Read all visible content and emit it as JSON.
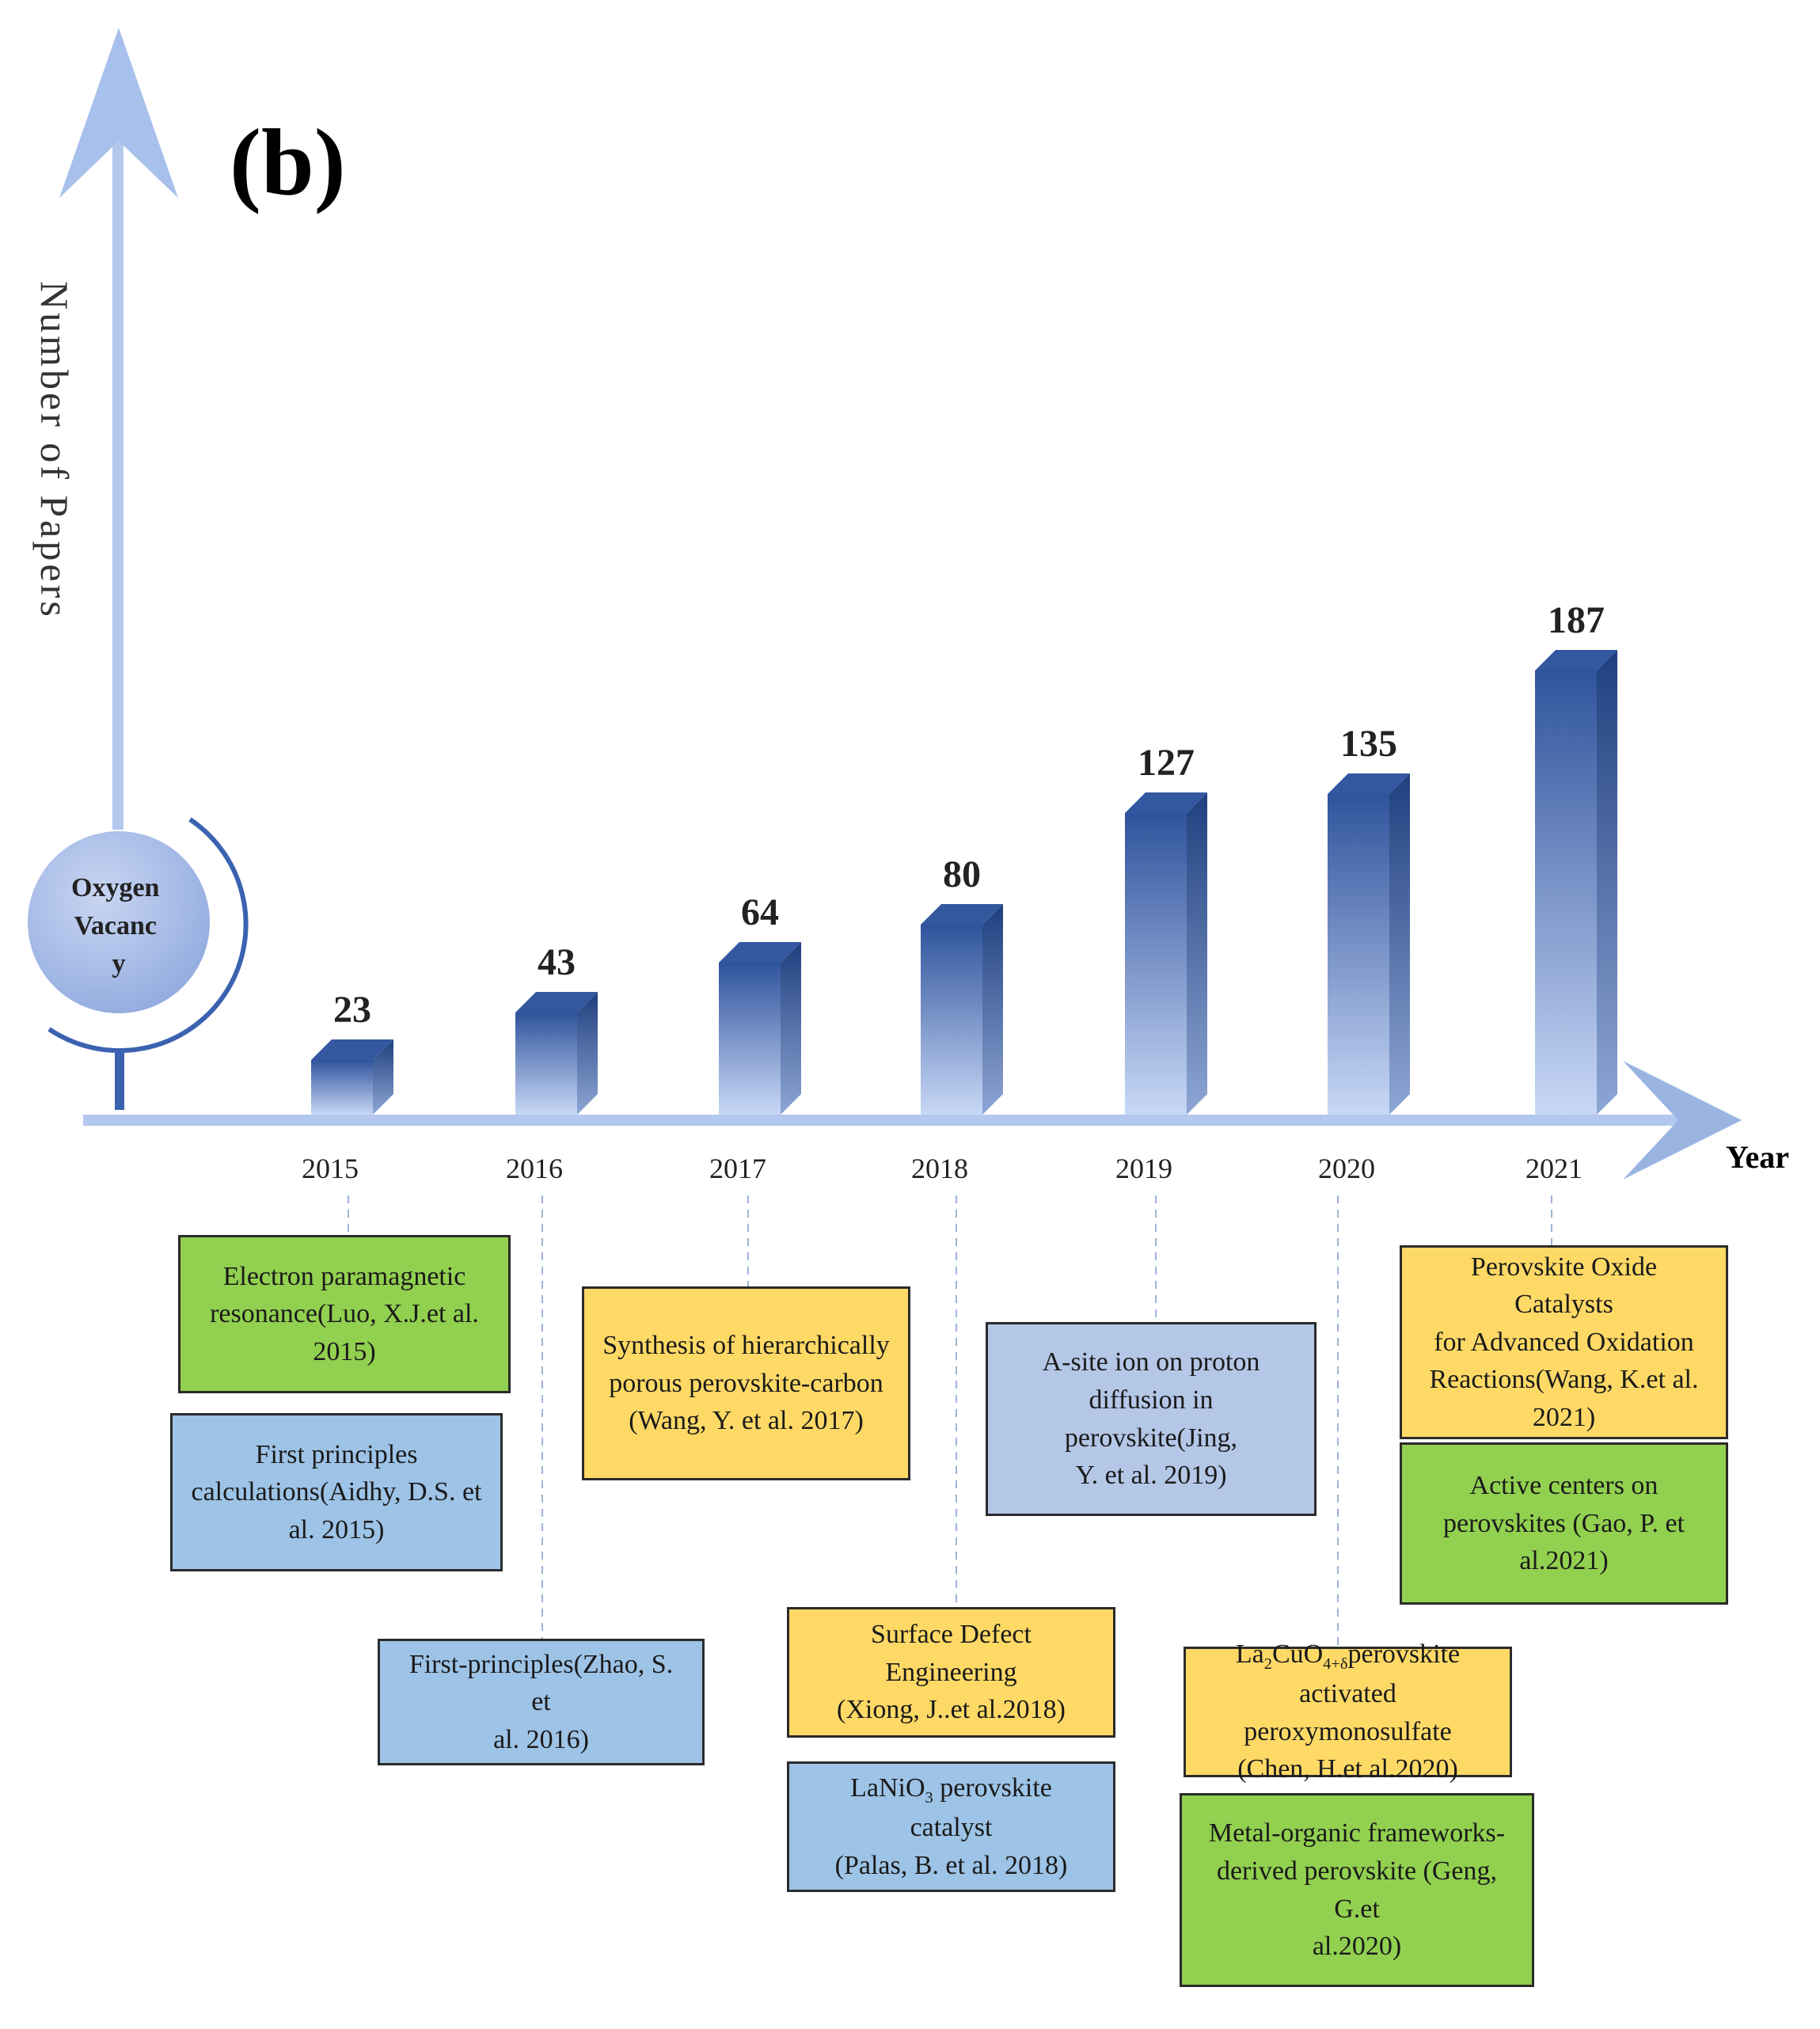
{
  "panel_label": "(b)",
  "y_axis_title": "Number of Papers",
  "x_axis_title": "Year",
  "center_node": "Oxygen\nVacanc\ny",
  "colors": {
    "axis_light": "#b4c8ee",
    "axis_mid": "#9ab4e2",
    "bar_top": "#2f539c",
    "bar_bottom": "#c8d8f6",
    "bar_side": "#2a4a88",
    "bar_cap": "#34589f",
    "green": "#92d050",
    "blue": "#9dc3e6",
    "yellow": "#ffd966",
    "lavender": "#b4c7e7"
  },
  "chart_data": {
    "type": "bar",
    "categories": [
      "2015",
      "2016",
      "2017",
      "2018",
      "2019",
      "2020",
      "2021"
    ],
    "values": [
      23,
      43,
      64,
      80,
      127,
      135,
      187
    ],
    "data_labels": [
      "23",
      "43",
      "64",
      "80",
      "127",
      "135",
      "187"
    ],
    "title": "",
    "xlabel": "Year",
    "ylabel": "Number of Papers",
    "style": "3d-gradient-columns",
    "grid": false
  },
  "annotations": [
    {
      "year": "2015",
      "color": "green",
      "text": "Electron paramagnetic\nresonance(Luo, X.J.et al.\n2015)"
    },
    {
      "year": "2015",
      "color": "blue",
      "text": "First principles\ncalculations(Aidhy, D.S. et\nal. 2015)"
    },
    {
      "year": "2016",
      "color": "blue",
      "text": "First-principles(Zhao, S. et\nal. 2016)"
    },
    {
      "year": "2017",
      "color": "yellow",
      "text": "Synthesis of hierarchically\nporous perovskite-carbon\n(Wang, Y. et al. 2017)"
    },
    {
      "year": "2018",
      "color": "yellow",
      "text": "Surface Defect Engineering\n(Xiong, J..et al.2018)"
    },
    {
      "year": "2018",
      "color": "blue",
      "text_parts": [
        "LaNiO",
        "3",
        " perovskite catalyst\n(Palas, B. et al. 2018)"
      ]
    },
    {
      "year": "2019",
      "color": "lavender",
      "text": "A-site ion on proton\ndiffusion in perovskite(Jing,\nY. et al. 2019)"
    },
    {
      "year": "2020",
      "color": "yellow",
      "text_parts": [
        "La",
        "2",
        "CuO",
        "4+δ",
        "perovskite\nactivated peroxymonosulfate\n(Chen, H.et al.2020)"
      ]
    },
    {
      "year": "2020",
      "color": "green",
      "text": "Metal-organic frameworks-\nderived perovskite (Geng, G.et\nal.2020)"
    },
    {
      "year": "2021",
      "color": "yellow",
      "text": "Perovskite Oxide Catalysts\nfor Advanced Oxidation\nReactions(Wang, K.et al.\n2021)"
    },
    {
      "year": "2021",
      "color": "green",
      "text": "Active centers on\nperovskites (Gao, P. et\nal.2021)"
    }
  ]
}
